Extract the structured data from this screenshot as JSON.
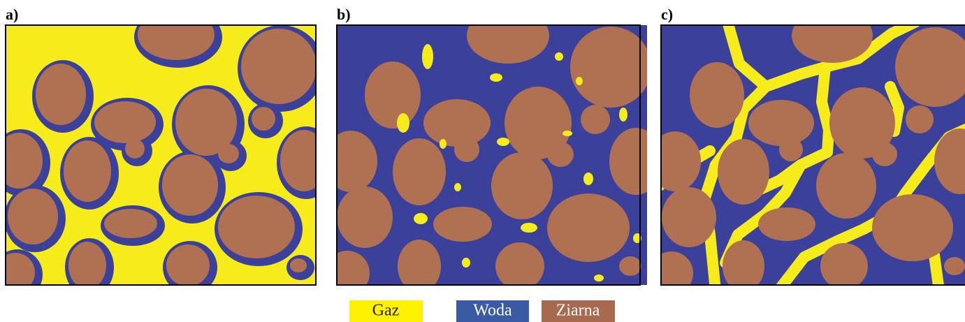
{
  "panels": [
    {
      "label": "a)"
    },
    {
      "label": "b)"
    },
    {
      "label": "c)"
    }
  ],
  "legend": [
    {
      "label": "Gaz"
    },
    {
      "label": "Woda"
    },
    {
      "label": "Ziarna"
    }
  ]
}
